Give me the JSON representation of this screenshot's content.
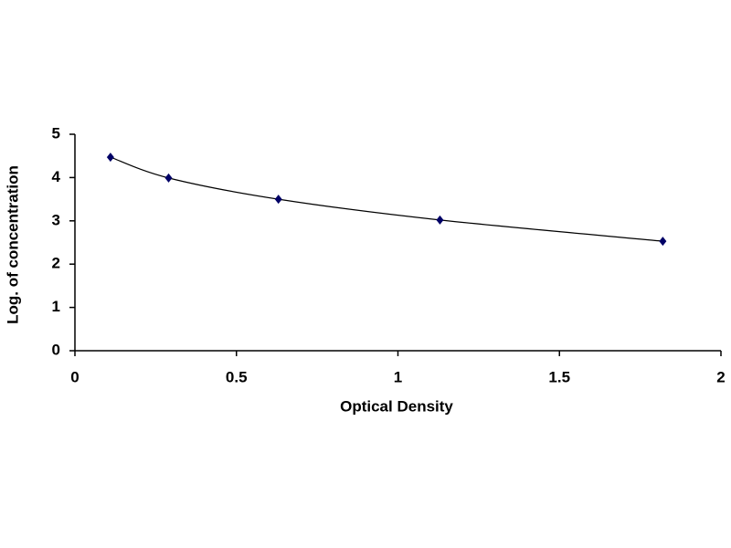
{
  "chart_data": {
    "type": "scatter",
    "x_label": "Optical Density",
    "y_label": "Log. of concentration",
    "series": [
      {
        "x": [
          0.11,
          0.29,
          0.63,
          1.13,
          1.82
        ],
        "values": [
          4.47,
          3.99,
          3.5,
          3.02,
          2.53
        ],
        "color": "#000066",
        "line_color": "#000000",
        "smooth": true
      }
    ],
    "xlim": [
      0,
      2
    ],
    "xticks": [
      0,
      0.5,
      1,
      1.5,
      2
    ],
    "ylim": [
      0,
      5
    ],
    "yticks": [
      0,
      1,
      2,
      3,
      4,
      5
    ],
    "grid": false
  }
}
